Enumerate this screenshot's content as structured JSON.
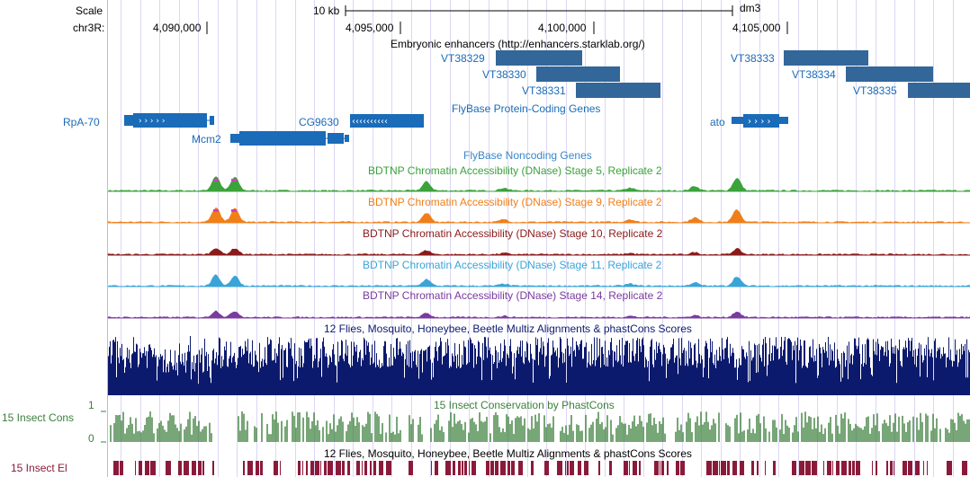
{
  "assembly": "dm3",
  "scale": {
    "label": "Scale",
    "bar_text": "10 kb"
  },
  "position": {
    "label": "chr3R:",
    "ticks": [
      "4,090,000",
      "4,095,000",
      "4,100,000",
      "4,105,000"
    ]
  },
  "tracks": {
    "enhancers": {
      "title": "Embryonic enhancers (http://enhancers.starklab.org/)",
      "color": "#336699",
      "items": [
        "VT38329",
        "VT38330",
        "VT38331",
        "VT38333",
        "VT38334",
        "VT38335"
      ]
    },
    "protein_coding": {
      "title": "FlyBase Protein-Coding Genes",
      "color": "#1a6bb8",
      "genes": [
        "RpA-70",
        "Mcm2",
        "CG9630",
        "ato"
      ]
    },
    "noncoding": {
      "title": "FlyBase Noncoding Genes",
      "color": "#3a86c8"
    },
    "dnase": [
      {
        "title": "BDTNP Chromatin Accessibility (DNase) Stage 5, Replicate 2",
        "color": "#3aa33a"
      },
      {
        "title": "BDTNP Chromatin Accessibility (DNase) Stage 9, Replicate 2",
        "color": "#f07f1a"
      },
      {
        "title": "BDTNP Chromatin Accessibility (DNase) Stage 10, Replicate 2",
        "color": "#8b1a1a"
      },
      {
        "title": "BDTNP Chromatin Accessibility (DNase) Stage 11, Replicate 2",
        "color": "#3aa4d8"
      },
      {
        "title": "BDTNP Chromatin Accessibility (DNase) Stage 14, Replicate 2",
        "color": "#7a3a9e"
      }
    ],
    "multiz": {
      "title": "12 Flies, Mosquito, Honeybee, Beetle Multiz Alignments & phastCons Scores",
      "color": "#0c1a6e"
    },
    "conservation": {
      "title": "15 Insect Conservation by PhastCons",
      "side_label": "15 Insect Cons",
      "axis_max": "1",
      "axis_min": "0",
      "color": "#3d7f3d"
    },
    "multiz2": {
      "title": "12 Flies, Mosquito, Honeybee, Beetle Multiz Alignments & phastCons Scores"
    },
    "elements": {
      "side_label": "15 Insect El",
      "color": "#8b1a3a"
    }
  }
}
